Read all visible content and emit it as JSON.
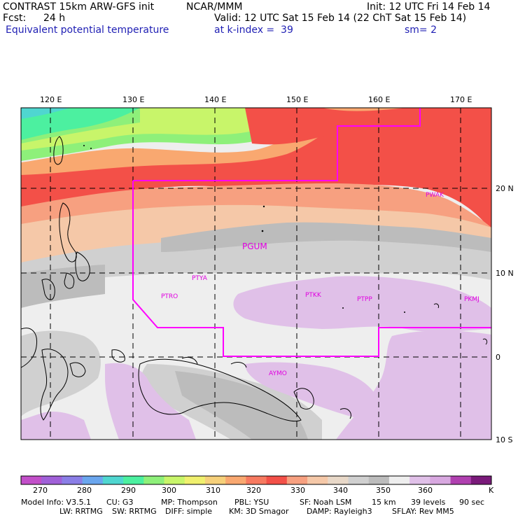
{
  "header": {
    "model_title": "CONTRAST 15km ARW-GFS init",
    "org": "NCAR/MMM",
    "init": "Init: 12 UTC Fri 14 Feb 14",
    "fcst_label": "Fcst:",
    "fcst_value": "24 h",
    "valid": "Valid: 12 UTC Sat 15 Feb 14 (22 ChT Sat 15 Feb 14)",
    "field": "Equivalent potential temperature",
    "level": "at k-index =  39",
    "smooth": "sm= 2"
  },
  "map": {
    "lon_labels": [
      "120 E",
      "130 E",
      "140 E",
      "150 E",
      "160 E",
      "170 E"
    ],
    "lat_labels": [
      "20 N",
      "10 N",
      "0",
      "10 S"
    ],
    "stations": [
      "PGUM",
      "PTYA",
      "PTRO",
      "PTKK",
      "PTPP",
      "PKMJ",
      "PWAK",
      "AYMO"
    ],
    "station_color": "#e000e0",
    "boundary_color": "#ff00ff"
  },
  "colorbar": {
    "ticks": [
      "270",
      "280",
      "290",
      "300",
      "310",
      "320",
      "330",
      "340",
      "350",
      "360"
    ],
    "unit": "K",
    "colors": [
      "#c24fc9",
      "#a060d8",
      "#8a7ee6",
      "#6aa6ee",
      "#4fd6d0",
      "#4cf0a0",
      "#8ef07a",
      "#c8f56a",
      "#f0f06e",
      "#f6d07a",
      "#f9a870",
      "#f77a60",
      "#f35048",
      "#f7a080",
      "#f5c8a8",
      "#e8d8c8",
      "#d0d0d0",
      "#bcbcbc",
      "#eeeeee",
      "#e0c0e8",
      "#d8a8e0",
      "#b040b0",
      "#7a1a7a"
    ]
  },
  "footer": {
    "line1": [
      "Model Info: V3.5.1",
      "CU: G3",
      "MP: Thompson",
      "PBL: YSU",
      "SF: Noah LSM",
      "15 km",
      "39 levels",
      "90 sec"
    ],
    "line2": [
      "LW: RRTMG",
      "SW: RRTMG",
      "DIFF: simple",
      "KM: 3D Smagor",
      "DAMP: Rayleigh3",
      "SFLAY: Rev MM5"
    ]
  }
}
